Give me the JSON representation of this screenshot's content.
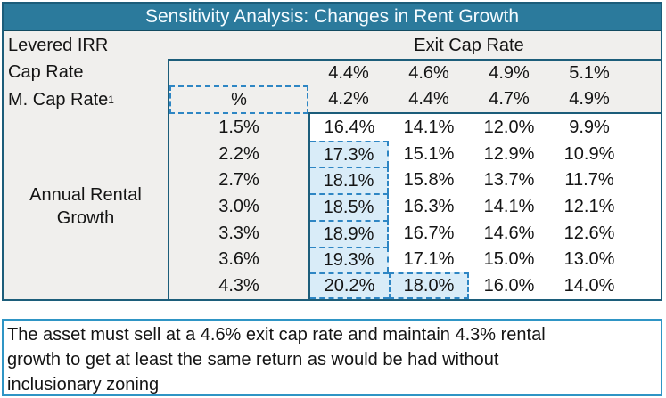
{
  "title": "Sensitivity Analysis: Changes in Rent Growth",
  "table": {
    "row_labels": {
      "levered_irr": "Levered IRR",
      "cap_rate": "Cap Rate",
      "m_cap_rate": "M. Cap Rate",
      "m_cap_rate_sup": "1",
      "annual_rental_line1": "Annual Rental",
      "annual_rental_line2": "Growth"
    },
    "exit_cap_rate_header": "Exit Cap Rate",
    "cap_rate_values": [
      "4.4%",
      "4.6%",
      "4.9%",
      "5.1%"
    ],
    "m_cap_rate_unit": "%",
    "m_cap_rate_values": [
      "4.2%",
      "4.4%",
      "4.7%",
      "4.9%"
    ],
    "growth_rates": [
      "1.5%",
      "2.2%",
      "2.7%",
      "3.0%",
      "3.3%",
      "3.6%",
      "4.3%"
    ],
    "irr_rows": [
      [
        "16.4%",
        "14.1%",
        "12.0%",
        "9.9%"
      ],
      [
        "17.3%",
        "15.1%",
        "12.9%",
        "10.9%"
      ],
      [
        "18.1%",
        "15.8%",
        "13.7%",
        "11.7%"
      ],
      [
        "18.5%",
        "16.3%",
        "14.1%",
        "12.1%"
      ],
      [
        "18.9%",
        "16.7%",
        "14.6%",
        "12.6%"
      ],
      [
        "19.3%",
        "17.1%",
        "15.0%",
        "13.0%"
      ],
      [
        "20.2%",
        "18.0%",
        "16.0%",
        "14.0%"
      ]
    ]
  },
  "note": {
    "lines": [
      "The asset must sell at a 4.6% exit cap rate and maintain 4.3% rental",
      "growth to get at least the same return as would be had without",
      "inclusionary zoning"
    ]
  },
  "colors": {
    "title_bar": "#2b7a9c",
    "table_border": "#1c5d7a",
    "panel_background": "#f0efed",
    "highlight_fill": "#d9ecf8",
    "highlight_dash": "#2e86c4",
    "note_border": "#2f95c5"
  }
}
